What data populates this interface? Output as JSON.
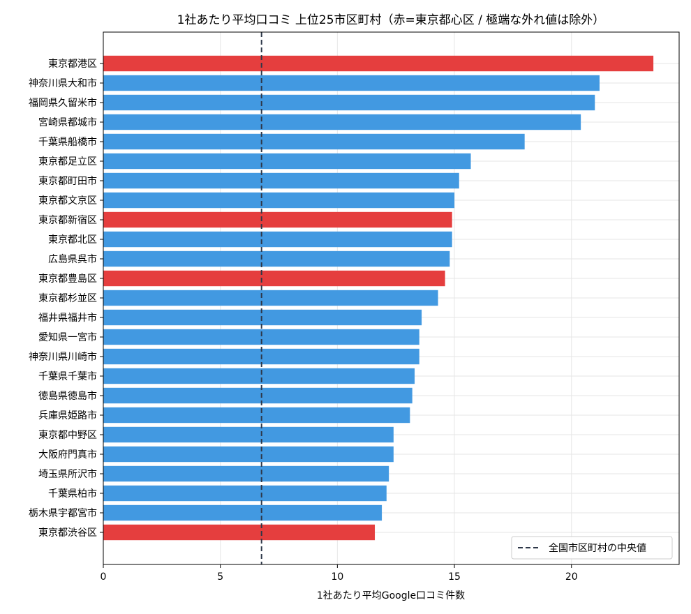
{
  "chart_data": {
    "type": "bar",
    "orientation": "horizontal",
    "title": "1社あたり平均口コミ 上位25市区町村（赤=東京都心区 / 極端な外れ値は除外）",
    "xlabel": "1社あたり平均Google口コミ件数",
    "ylabel": "",
    "xlim": [
      0,
      24.6
    ],
    "xticks": [
      0,
      5,
      10,
      15,
      20
    ],
    "grid": true,
    "legend_position": "bottom-right",
    "colors": {
      "highlight": "#e53e3e",
      "default": "#4299e1",
      "median_line": "#2d3748"
    },
    "categories": [
      "東京都港区",
      "神奈川県大和市",
      "福岡県久留米市",
      "宮崎県都城市",
      "千葉県船橋市",
      "東京都足立区",
      "東京都町田市",
      "東京都文京区",
      "東京都新宿区",
      "東京都北区",
      "広島県呉市",
      "東京都豊島区",
      "東京都杉並区",
      "福井県福井市",
      "愛知県一宮市",
      "神奈川県川崎市",
      "千葉県千葉市",
      "徳島県徳島市",
      "兵庫県姫路市",
      "東京都中野区",
      "大阪府門真市",
      "埼玉県所沢市",
      "千葉県柏市",
      "栃木県宇都宮市",
      "東京都渋谷区"
    ],
    "values": [
      23.5,
      21.2,
      21.0,
      20.4,
      18.0,
      15.7,
      15.2,
      15.0,
      14.9,
      14.9,
      14.8,
      14.6,
      14.3,
      13.6,
      13.5,
      13.5,
      13.3,
      13.2,
      13.1,
      12.4,
      12.4,
      12.2,
      12.1,
      11.9,
      11.6
    ],
    "highlight": [
      true,
      false,
      false,
      false,
      false,
      false,
      false,
      false,
      true,
      false,
      false,
      true,
      false,
      false,
      false,
      false,
      false,
      false,
      false,
      false,
      false,
      false,
      false,
      false,
      true
    ],
    "median": 6.76,
    "legend": [
      {
        "label": "全国市区町村の中央値",
        "style": "dashed-line"
      }
    ]
  }
}
